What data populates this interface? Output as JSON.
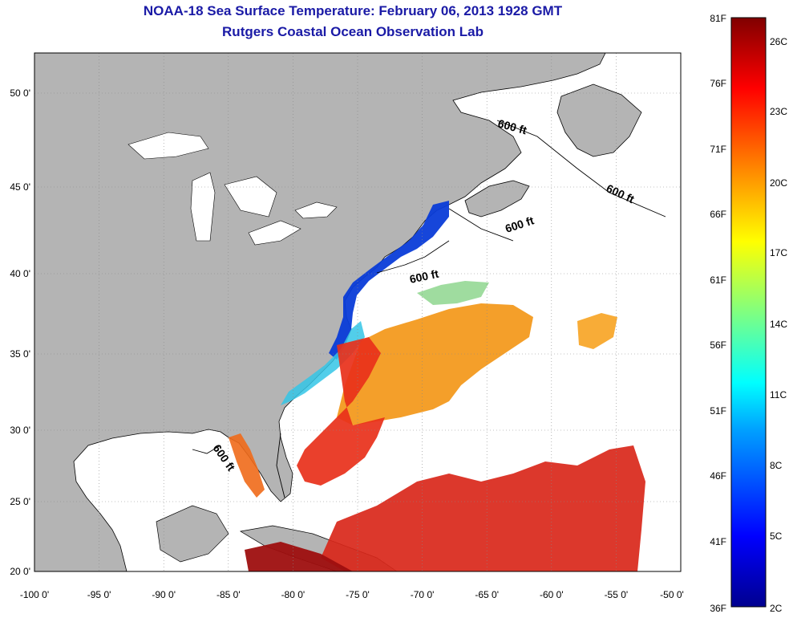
{
  "title": "NOAA-18 Sea Surface Temperature:  February 06, 2013 1928 GMT",
  "subtitle": "Rutgers Coastal Ocean Observation Lab",
  "map": {
    "lon_ticks": [
      "-100 0'",
      "-95 0'",
      "-90 0'",
      "-85 0'",
      "-80 0'",
      "-75 0'",
      "-70 0'",
      "-65 0'",
      "-60 0'",
      "-55 0'",
      "-50 0'"
    ],
    "lat_ticks": [
      "50 0'",
      "45 0'",
      "40 0'",
      "35 0'",
      "30 0'",
      "25 0'",
      "20 0'"
    ],
    "contour_labels": [
      "600 ft",
      "600 ft",
      "600 ft",
      "600 ft",
      "600 ft"
    ],
    "land_color": "#b4b4b4",
    "water_color": "#ffffff"
  },
  "colorbar": {
    "fahrenheit_labels": [
      "81F",
      "76F",
      "71F",
      "66F",
      "61F",
      "56F",
      "51F",
      "46F",
      "41F",
      "36F"
    ],
    "celsius_labels": [
      "26C",
      "23C",
      "20C",
      "17C",
      "14C",
      "11C",
      "8C",
      "5C",
      "2C"
    ],
    "colors": [
      "#00008f",
      "#0000ff",
      "#00a0ff",
      "#00ffff",
      "#80ff80",
      "#ffff00",
      "#ff8000",
      "#ff0000",
      "#800000"
    ]
  }
}
